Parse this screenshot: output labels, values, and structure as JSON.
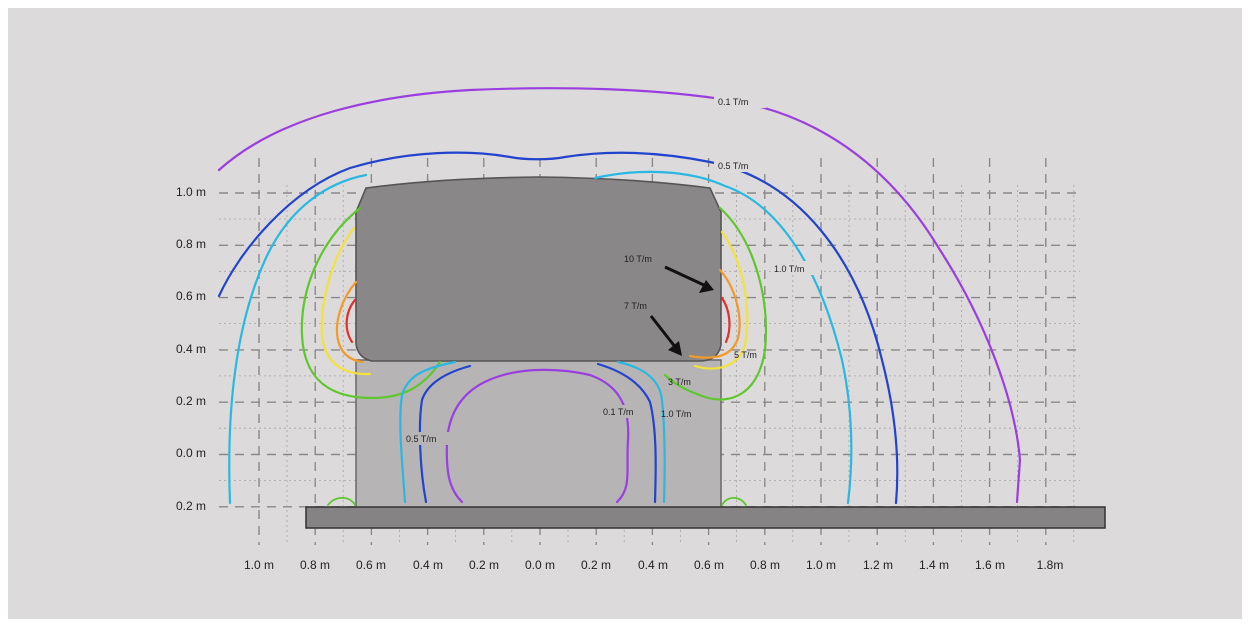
{
  "y_axis_labels": [
    "1.0 m",
    "0.8 m",
    "0.6 m",
    "0.4 m",
    "0.2 m",
    "0.0 m",
    "0.2 m"
  ],
  "x_axis_labels": [
    "1.0 m",
    "0.8 m",
    "0.6 m",
    "0.4 m",
    "0.2 m",
    "0.0 m",
    "0.2 m",
    "0.4 m",
    "0.6 m",
    "0.8 m",
    "1.0 m",
    "1.2 m",
    "1.4 m",
    "1.6 m",
    "1.8m"
  ],
  "contour_labels": {
    "outer_0_1": "0.1 T/m",
    "outer_0_5": "0.5 T/m",
    "outer_1_0": "1.0 T/m",
    "ten": "10 T/m",
    "seven": "7 T/m",
    "five": "5 T/m",
    "three": "3 T/m",
    "inner_0_1": "0.1 T/m",
    "inner_1_0": "1.0 T/m",
    "inner_0_5": "0.5 T/m"
  },
  "colors": {
    "background": "#dcdada",
    "magnet": "#898787",
    "stem": "#b6b4b4",
    "base": "#858383",
    "c_0_1": "#9b3ee0",
    "c_0_5": "#2244cc",
    "c_1_0": "#2ab8e2",
    "c_3": "#5ec72e",
    "c_5": "#f2e23a",
    "c_7": "#f29a2a",
    "c_10": "#e0302a",
    "arrow": "#111111",
    "grid": "#8a8888"
  }
}
